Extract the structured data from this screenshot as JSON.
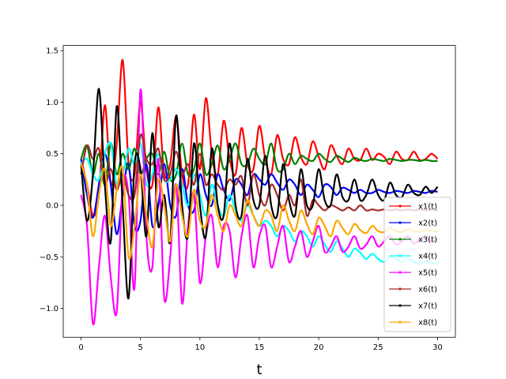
{
  "chart_data": {
    "type": "line",
    "title": "",
    "xlabel": "t",
    "ylabel": "",
    "xlim": [
      -1.5,
      31.5
    ],
    "ylim": [
      -1.28,
      1.55
    ],
    "xticks": [
      0,
      5,
      10,
      15,
      20,
      25,
      30
    ],
    "yticks": [
      -1.0,
      -0.5,
      0.0,
      0.5,
      1.0,
      1.5
    ],
    "xtick_labels": [
      "0",
      "5",
      "10",
      "15",
      "20",
      "25",
      "30"
    ],
    "ytick_labels": [
      "−1.0",
      "−0.5",
      "0.0",
      "0.5",
      "1.0",
      "1.5"
    ],
    "grid": false,
    "legend_position": "lower-right",
    "x": [
      0,
      0.5,
      1,
      1.5,
      2,
      2.5,
      3,
      3.5,
      4,
      4.5,
      5,
      5.5,
      6,
      6.5,
      7,
      7.5,
      8,
      8.5,
      9,
      9.5,
      10,
      10.5,
      11,
      11.5,
      12,
      12.5,
      13,
      13.5,
      14,
      14.5,
      15,
      15.5,
      16,
      16.5,
      17,
      17.5,
      18,
      18.5,
      19,
      19.5,
      20,
      20.5,
      21,
      21.5,
      22,
      22.5,
      23,
      23.5,
      24,
      24.5,
      25,
      25.5,
      26,
      26.5,
      27,
      27.5,
      28,
      28.5,
      29,
      29.5,
      30
    ],
    "series": [
      {
        "name": "x1(t)",
        "color": "#ff0000",
        "values": [
          0.45,
          0.2,
          -0.1,
          0.1,
          0.97,
          0.2,
          0.6,
          1.41,
          0.4,
          0.3,
          1.0,
          0.35,
          0.2,
          0.95,
          0.3,
          0.4,
          0.86,
          0.3,
          0.2,
          0.88,
          0.35,
          1.04,
          0.5,
          0.3,
          0.82,
          0.45,
          0.3,
          0.75,
          0.4,
          0.35,
          0.77,
          0.45,
          0.3,
          0.68,
          0.45,
          0.4,
          0.66,
          0.47,
          0.4,
          0.62,
          0.47,
          0.35,
          0.58,
          0.48,
          0.4,
          0.55,
          0.45,
          0.44,
          0.55,
          0.44,
          0.5,
          0.47,
          0.4,
          0.52,
          0.45,
          0.44,
          0.52,
          0.44,
          0.45,
          0.5,
          0.45
        ]
      },
      {
        "name": "x2(t)",
        "color": "#0000ff",
        "values": [
          0.45,
          0.1,
          -0.12,
          0.2,
          0.5,
          0.2,
          -0.28,
          0.1,
          0.4,
          -0.2,
          -0.15,
          0.4,
          -0.2,
          0.0,
          0.4,
          0.0,
          -0.1,
          0.35,
          0.0,
          -0.05,
          0.3,
          0.1,
          0.0,
          0.3,
          0.15,
          0.05,
          0.25,
          0.2,
          0.1,
          0.3,
          0.25,
          0.2,
          0.3,
          0.22,
          0.15,
          0.25,
          0.2,
          0.1,
          0.2,
          0.15,
          0.08,
          0.2,
          0.18,
          0.1,
          0.17,
          0.15,
          0.12,
          0.15,
          0.12,
          0.12,
          0.15,
          0.13,
          0.12,
          0.14,
          0.13,
          0.12,
          0.14,
          0.13,
          0.12,
          0.14,
          0.13
        ]
      },
      {
        "name": "x3(t)",
        "color": "#008000",
        "values": [
          0.45,
          0.58,
          0.3,
          0.5,
          0.2,
          0.6,
          0.3,
          0.5,
          0.35,
          0.55,
          0.3,
          0.45,
          0.5,
          0.3,
          0.52,
          0.25,
          0.3,
          0.6,
          0.3,
          0.35,
          0.6,
          0.3,
          0.4,
          0.58,
          0.35,
          0.45,
          0.6,
          0.4,
          0.4,
          0.55,
          0.45,
          0.4,
          0.6,
          0.35,
          0.35,
          0.5,
          0.4,
          0.48,
          0.45,
          0.43,
          0.5,
          0.45,
          0.42,
          0.48,
          0.45,
          0.42,
          0.46,
          0.44,
          0.43,
          0.45,
          0.44,
          0.43,
          0.45,
          0.44,
          0.43,
          0.44,
          0.44,
          0.43,
          0.44,
          0.43,
          0.43
        ]
      },
      {
        "name": "x4(t)",
        "color": "#00ffff",
        "values": [
          0.4,
          0.45,
          0.3,
          0.25,
          0.5,
          0.6,
          0.2,
          0.3,
          0.55,
          0.4,
          0.6,
          0.2,
          0.3,
          0.5,
          0.25,
          0.25,
          0.35,
          0.2,
          0.0,
          0.3,
          0.1,
          -0.1,
          0.2,
          0.0,
          -0.1,
          0.1,
          -0.05,
          -0.15,
          0.0,
          -0.1,
          -0.2,
          -0.15,
          -0.2,
          -0.3,
          -0.2,
          -0.25,
          -0.35,
          -0.25,
          -0.3,
          -0.4,
          -0.3,
          -0.38,
          -0.45,
          -0.35,
          -0.42,
          -0.5,
          -0.42,
          -0.46,
          -0.52,
          -0.47,
          -0.52,
          -0.55,
          -0.5,
          -0.52,
          -0.55,
          -0.52,
          -0.55,
          -0.57,
          -0.54,
          -0.56,
          -0.57
        ]
      },
      {
        "name": "x5(t)",
        "color": "#ff00ff",
        "values": [
          0.1,
          -0.2,
          -1.15,
          -0.6,
          -0.1,
          -0.7,
          -1.03,
          0.2,
          0.1,
          -0.8,
          1.12,
          -0.3,
          -0.6,
          0.45,
          -0.9,
          -0.5,
          0.2,
          -0.95,
          -0.2,
          0.1,
          -0.75,
          -0.3,
          -0.1,
          -0.6,
          -0.2,
          -0.25,
          -0.7,
          -0.3,
          -0.1,
          -0.6,
          -0.3,
          -0.2,
          -0.6,
          -0.4,
          -0.2,
          -0.55,
          -0.4,
          -0.25,
          -0.5,
          -0.35,
          -0.2,
          -0.45,
          -0.4,
          -0.3,
          -0.45,
          -0.4,
          -0.3,
          -0.42,
          -0.38,
          -0.3,
          -0.4,
          -0.35,
          -0.3,
          -0.38,
          -0.35,
          -0.3,
          -0.37,
          -0.33,
          -0.3,
          -0.35,
          -0.33
        ]
      },
      {
        "name": "x6(t)",
        "color": "#a52a2a",
        "values": [
          0.3,
          0.58,
          0.45,
          0.55,
          0.2,
          0.35,
          0.15,
          0.3,
          0.1,
          0.1,
          0.68,
          0.45,
          0.4,
          0.55,
          0.25,
          0.3,
          0.52,
          0.3,
          0.4,
          0.2,
          0.5,
          0.2,
          0.3,
          0.2,
          0.15,
          0.25,
          0.2,
          0.28,
          0.0,
          0.3,
          0.1,
          0.0,
          0.2,
          0.1,
          -0.05,
          0.1,
          0.0,
          0.25,
          -0.1,
          0.05,
          0.0,
          -0.05,
          0.0,
          -0.02,
          -0.05,
          -0.02,
          -0.05,
          0.0,
          -0.05,
          -0.04,
          -0.05,
          -0.04,
          -0.05,
          -0.04,
          -0.05,
          -0.04,
          -0.05,
          -0.04,
          -0.05,
          -0.04,
          -0.05
        ]
      },
      {
        "name": "x7(t)",
        "color": "#000000",
        "values": [
          0.4,
          -0.15,
          0.3,
          1.13,
          0.2,
          -0.35,
          0.96,
          0.0,
          -0.9,
          0.4,
          0.35,
          -0.3,
          0.7,
          -0.2,
          0.1,
          -0.35,
          0.87,
          0.0,
          -0.3,
          0.6,
          0.0,
          -0.3,
          0.55,
          0.0,
          -0.1,
          0.6,
          0.0,
          -0.1,
          0.45,
          0.05,
          0.0,
          0.48,
          0.0,
          -0.1,
          0.4,
          0.05,
          -0.1,
          0.35,
          0.0,
          0.0,
          0.35,
          0.05,
          0.0,
          0.3,
          0.08,
          0.05,
          0.25,
          0.05,
          0.1,
          0.25,
          0.1,
          0.05,
          0.22,
          0.1,
          0.08,
          0.2,
          0.12,
          0.1,
          0.18,
          0.12,
          0.18
        ]
      },
      {
        "name": "x8(t)",
        "color": "#ffa500",
        "values": [
          0.4,
          0.2,
          -0.3,
          0.1,
          0.35,
          -0.2,
          0.15,
          0.35,
          -0.5,
          -0.2,
          0.3,
          -0.1,
          -0.4,
          0.25,
          0.0,
          -0.35,
          0.2,
          -0.1,
          -0.3,
          0.15,
          -0.15,
          -0.2,
          0.1,
          -0.1,
          -0.25,
          0.0,
          -0.1,
          -0.2,
          0.05,
          -0.1,
          -0.2,
          -0.05,
          -0.1,
          -0.25,
          0.0,
          -0.15,
          -0.25,
          -0.05,
          -0.18,
          -0.28,
          -0.12,
          -0.2,
          -0.3,
          -0.15,
          -0.22,
          -0.28,
          -0.18,
          -0.24,
          -0.27,
          -0.2,
          -0.25,
          -0.26,
          -0.22,
          -0.25,
          -0.26,
          -0.23,
          -0.25,
          -0.26,
          -0.24,
          -0.25,
          -0.25
        ]
      }
    ]
  }
}
